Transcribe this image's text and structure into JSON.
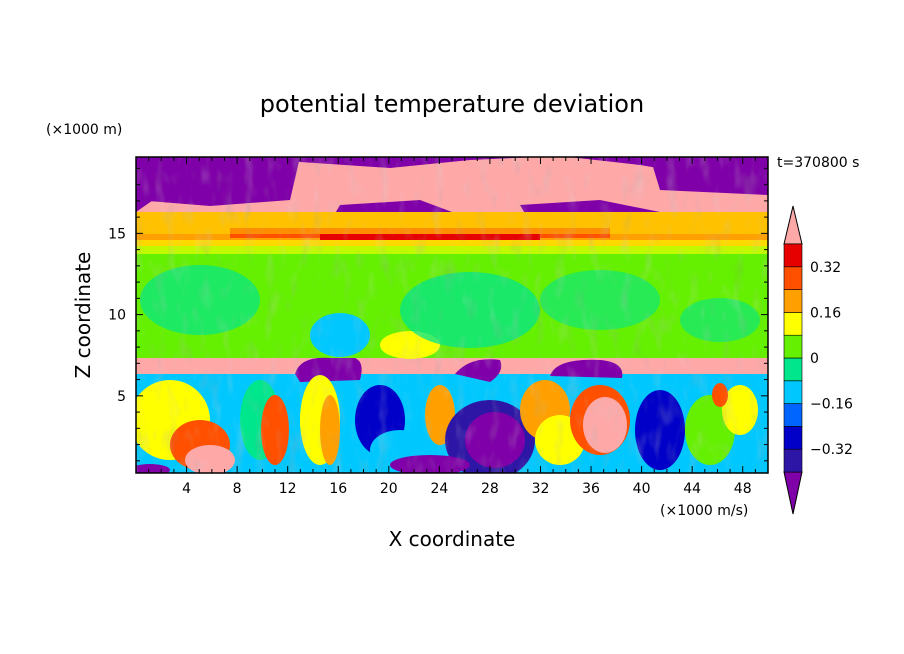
{
  "chart_data": {
    "type": "heatmap",
    "title": "potential temperature deviation",
    "time_label": "t=370800 s",
    "xlabel": "X coordinate",
    "ylabel": "Z coordinate",
    "x_unit": "(×1000 m/s)",
    "y_unit": "(×1000 m)",
    "xlim": [
      0,
      50
    ],
    "ylim": [
      0.25,
      19.7
    ],
    "x_ticks": [
      "4",
      "8",
      "12",
      "16",
      "20",
      "24",
      "28",
      "32",
      "36",
      "40",
      "44",
      "48"
    ],
    "y_ticks": [
      "5",
      "10",
      "15"
    ],
    "colorbar": {
      "levels": [
        -0.4,
        -0.32,
        -0.24,
        -0.16,
        -0.08,
        0,
        0.08,
        0.16,
        0.24,
        0.32,
        0.4
      ],
      "tick_labels": [
        "0.32",
        "0.16",
        "0",
        "−0.16",
        "−0.32"
      ],
      "colors": [
        "#7f00a8",
        "#2d16a6",
        "#0000c8",
        "#0064ff",
        "#00c8ff",
        "#00e68c",
        "#64f000",
        "#ffff00",
        "#ffa000",
        "#ff5000",
        "#e60000",
        "#ffa8a8"
      ]
    },
    "layers": [
      {
        "z_range": [
          16.3,
          19.7
        ],
        "dominant": "below -0.40 with patches above 0.40"
      },
      {
        "z_range": [
          14.5,
          16.3
        ],
        "dominant": "mixed, +0.08 to +0.40 band near 15"
      },
      {
        "z_range": [
          7.3,
          14.5
        ],
        "dominant": "0 to +0.08"
      },
      {
        "z_range": [
          6.8,
          7.3
        ],
        "dominant": "above 0.40"
      },
      {
        "z_range": [
          0.25,
          6.8
        ],
        "dominant": "turbulent eddies, -0.40 to +0.40"
      }
    ]
  }
}
